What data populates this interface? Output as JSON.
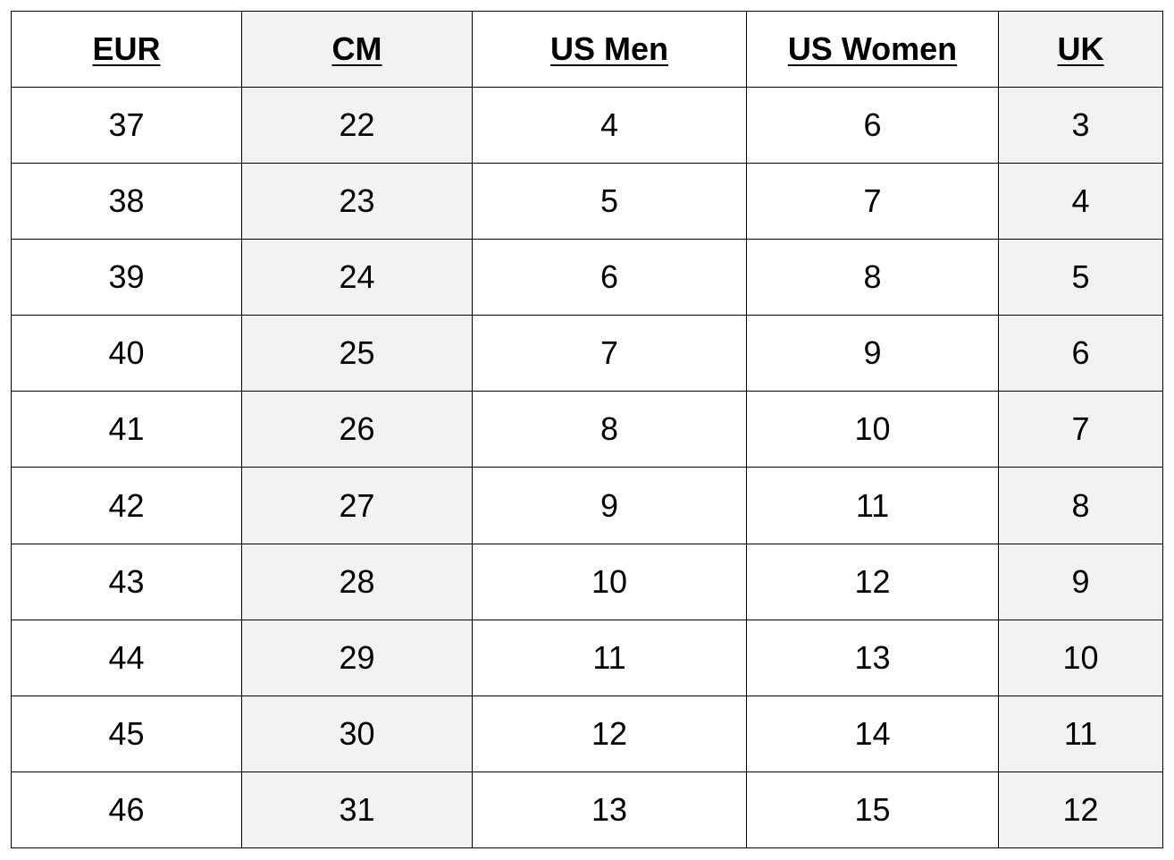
{
  "table": {
    "headers": [
      "EUR",
      "CM",
      "US Men",
      "US Women",
      "UK"
    ],
    "rows": [
      [
        "37",
        "22",
        "4",
        "6",
        "3"
      ],
      [
        "38",
        "23",
        "5",
        "7",
        "4"
      ],
      [
        "39",
        "24",
        "6",
        "8",
        "5"
      ],
      [
        "40",
        "25",
        "7",
        "9",
        "6"
      ],
      [
        "41",
        "26",
        "8",
        "10",
        "7"
      ],
      [
        "42",
        "27",
        "9",
        "11",
        "8"
      ],
      [
        "43",
        "28",
        "10",
        "12",
        "9"
      ],
      [
        "44",
        "29",
        "11",
        "13",
        "10"
      ],
      [
        "45",
        "30",
        "12",
        "14",
        "11"
      ],
      [
        "46",
        "31",
        "13",
        "15",
        "12"
      ]
    ],
    "shaded_columns": [
      1,
      4
    ],
    "shade_color": "#f2f2f2",
    "border_color": "#000000"
  }
}
